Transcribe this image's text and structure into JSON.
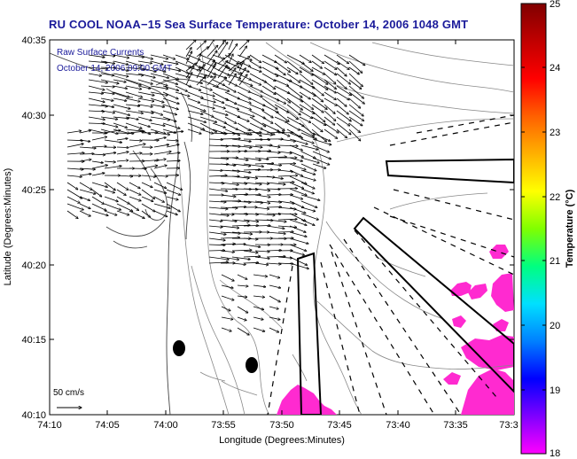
{
  "title": "RU COOL  NOAA−15  Sea Surface Temperature:  October 14, 2006 1048 GMT",
  "overlay": {
    "line1": "Raw Surface Currents",
    "line2": "October 14, 2006 09:00 GMT"
  },
  "axes": {
    "xlabel": "Longitude (Degrees:Minutes)",
    "ylabel": "Latitude (Degrees:Minutes)",
    "xticks": [
      "74:10",
      "74:05",
      "74:00",
      "73:55",
      "73:50",
      "73:45",
      "73:40",
      "73:35",
      "73:3"
    ],
    "yticks": [
      "40:35",
      "40:30",
      "40:25",
      "40:20",
      "40:15",
      "40:10"
    ]
  },
  "scale": {
    "label": "50 cm/s"
  },
  "colorbar": {
    "label": "Temperature (°C)",
    "ticks": [
      "25",
      "24",
      "23",
      "22",
      "21",
      "20",
      "19",
      "18"
    ],
    "colors": [
      "#ff00ff",
      "#7f00ff",
      "#0000ff",
      "#0080ff",
      "#00e0ff",
      "#00ff80",
      "#80ff00",
      "#ffff00",
      "#ffb000",
      "#ff6000",
      "#ff0000",
      "#c00000",
      "#800000"
    ]
  }
}
